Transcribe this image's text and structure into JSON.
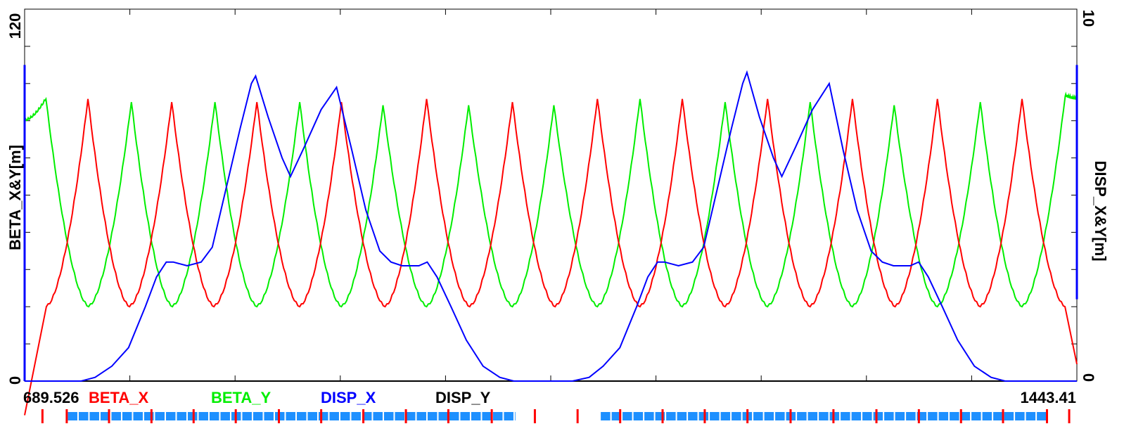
{
  "chart_data": {
    "type": "line",
    "x_range": [
      689.526,
      1443.41
    ],
    "left_axis": {
      "label": "BETA_X&Y[m]",
      "min": 0,
      "max": 120,
      "min_label": "0",
      "max_label": "120"
    },
    "right_axis": {
      "label": "DISP_X&Y[m]",
      "min": 0,
      "max": 10,
      "min_label": "0",
      "max_label": "10"
    },
    "x_start_label": "689.526",
    "x_end_label": "1443.41",
    "legend": [
      "BETA_X",
      "BETA_Y",
      "DISP_X",
      "DISP_Y"
    ],
    "colors": {
      "BETA_X": "#ff0000",
      "BETA_Y": "#00ee00",
      "DISP_X": "#0000ff",
      "DISP_Y": "#000000",
      "lattice_bend": "#1e90ff",
      "lattice_quad": "#ff0000"
    },
    "beta_x": {
      "axis": "left",
      "min_at": [
        705.1,
        764.7,
        825.2,
        886.6,
        947.8,
        1008.4,
        1069.6,
        1130.4,
        1191.4,
        1252.3,
        1313.2,
        1374.2,
        1434.9
      ],
      "max_at": [
        734.9,
        794.9,
        855.9,
        916.5,
        977.5,
        1039.0,
        1099.9,
        1160.7,
        1221.8,
        1282.6,
        1343.5,
        1404.1
      ],
      "min_value": 24,
      "max_values": [
        91,
        90,
        90,
        90,
        91,
        90,
        91,
        91,
        91,
        91,
        91,
        91
      ]
    },
    "beta_y": {
      "axis": "left",
      "min_at": [
        735.4,
        795.4,
        855.9,
        916.5,
        977.5,
        1039.0,
        1099.9,
        1160.7,
        1221.8,
        1282.6,
        1343.5,
        1404.1
      ],
      "max_at": [
        689.526,
        704.8,
        766.0,
        825.9,
        886.6,
        946.3,
        1007.6,
        1068.7,
        1130.4,
        1191.4,
        1252.3,
        1312.5,
        1374.2,
        1435.1,
        1443.41
      ],
      "min_value": 24,
      "max_values": [
        84,
        91,
        90,
        90,
        90,
        89,
        89,
        89,
        91,
        90,
        90,
        89,
        90,
        92,
        91
      ]
    },
    "disp_x": {
      "axis": "right",
      "points": [
        [
          689.526,
          0
        ],
        [
          730,
          0
        ],
        [
          740,
          0.1
        ],
        [
          752,
          0.4
        ],
        [
          764,
          0.9
        ],
        [
          776,
          2.0
        ],
        [
          784,
          2.8
        ],
        [
          791,
          3.2
        ],
        [
          796,
          3.2
        ],
        [
          806,
          3.1
        ],
        [
          816,
          3.2
        ],
        [
          824,
          3.6
        ],
        [
          834,
          5.2
        ],
        [
          844,
          6.8
        ],
        [
          852,
          8.0
        ],
        [
          855,
          8.2
        ],
        [
          864,
          7.1
        ],
        [
          874,
          6.0
        ],
        [
          880,
          5.5
        ],
        [
          890,
          6.3
        ],
        [
          902,
          7.3
        ],
        [
          913,
          7.9
        ],
        [
          924,
          6.2
        ],
        [
          934,
          4.6
        ],
        [
          944,
          3.5
        ],
        [
          952,
          3.2
        ],
        [
          960,
          3.1
        ],
        [
          972,
          3.1
        ],
        [
          978,
          3.2
        ],
        [
          985,
          2.8
        ],
        [
          995,
          2.0
        ],
        [
          1006,
          1.1
        ],
        [
          1018,
          0.4
        ],
        [
          1030,
          0.1
        ],
        [
          1040,
          0
        ],
        [
          1082,
          0
        ],
        [
          1094,
          0.1
        ],
        [
          1104,
          0.4
        ],
        [
          1116,
          0.9
        ],
        [
          1128,
          2.0
        ],
        [
          1136,
          2.8
        ],
        [
          1143,
          3.2
        ],
        [
          1148,
          3.2
        ],
        [
          1158,
          3.1
        ],
        [
          1168,
          3.2
        ],
        [
          1176,
          3.6
        ],
        [
          1186,
          5.2
        ],
        [
          1196,
          6.8
        ],
        [
          1204,
          8.0
        ],
        [
          1207,
          8.3
        ],
        [
          1216,
          7.1
        ],
        [
          1226,
          6.0
        ],
        [
          1232,
          5.5
        ],
        [
          1242,
          6.3
        ],
        [
          1254,
          7.3
        ],
        [
          1266,
          8.0
        ],
        [
          1276,
          6.2
        ],
        [
          1286,
          4.6
        ],
        [
          1296,
          3.5
        ],
        [
          1304,
          3.2
        ],
        [
          1312,
          3.1
        ],
        [
          1324,
          3.1
        ],
        [
          1330,
          3.2
        ],
        [
          1337,
          2.8
        ],
        [
          1347,
          2.0
        ],
        [
          1358,
          1.1
        ],
        [
          1370,
          0.4
        ],
        [
          1382,
          0.1
        ],
        [
          1392,
          0
        ],
        [
          1443.41,
          0
        ]
      ]
    },
    "disp_y": {
      "axis": "right",
      "points": [
        [
          689.526,
          0
        ],
        [
          1443.41,
          0
        ]
      ]
    },
    "lattice": {
      "quads": [
        702.3,
        719.7,
        750.0,
        780.4,
        810.6,
        840.8,
        871.7,
        902.0,
        932.2,
        962.7,
        993.1,
        1024.2,
        1055.1,
        1085.7,
        1116.2,
        1146.6,
        1176.8,
        1207.4,
        1238.3,
        1269.0,
        1299.8,
        1330.2,
        1360.4,
        1390.5,
        1422.0,
        1437.9
      ],
      "bend_ranges": [
        [
          720.5,
          1041.9
        ],
        [
          1102.3,
          1423.0
        ]
      ]
    }
  }
}
